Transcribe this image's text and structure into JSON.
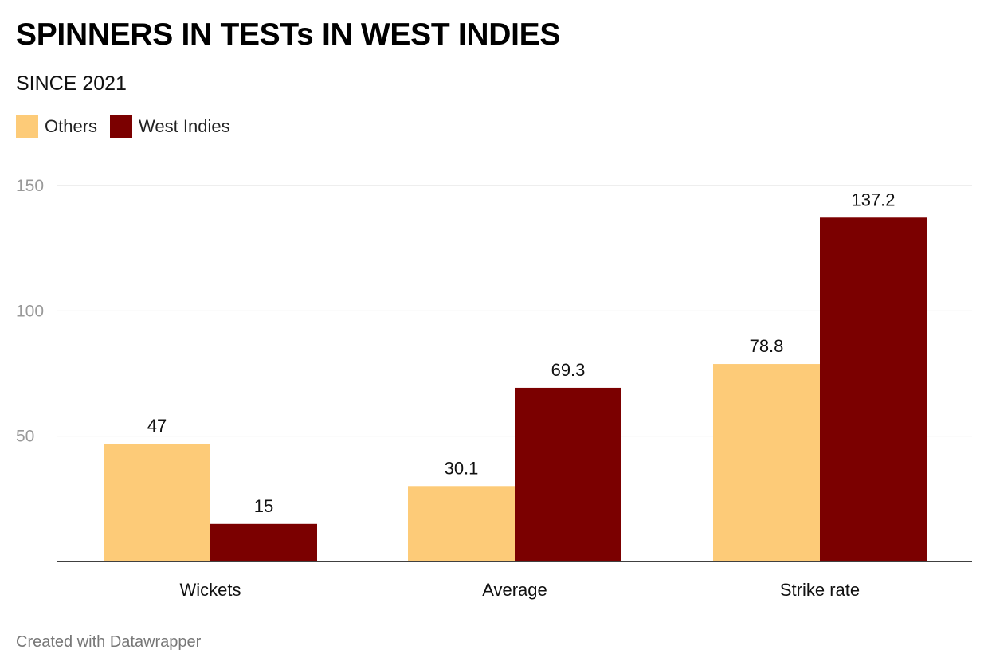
{
  "title": "SPINNERS IN TESTs IN WEST INDIES",
  "subtitle": "SINCE 2021",
  "footer": "Created with Datawrapper",
  "colors": {
    "others": "#FDCB78",
    "west_indies": "#7B0000",
    "grid": "#dddddd",
    "axis": "#000000",
    "tick": "#999999"
  },
  "chart_data": {
    "type": "bar",
    "categories": [
      "Wickets",
      "Average",
      "Strike rate"
    ],
    "series": [
      {
        "name": "Others",
        "values": [
          47,
          30.1,
          78.8
        ],
        "labels": [
          "47",
          "30.1",
          "78.8"
        ]
      },
      {
        "name": "West Indies",
        "values": [
          15,
          69.3,
          137.2
        ],
        "labels": [
          "15",
          "69.3",
          "137.2"
        ]
      }
    ],
    "yticks": [
      50,
      100,
      150
    ],
    "ylim": [
      0,
      150
    ],
    "grid": true,
    "legend_position": "top-left"
  }
}
